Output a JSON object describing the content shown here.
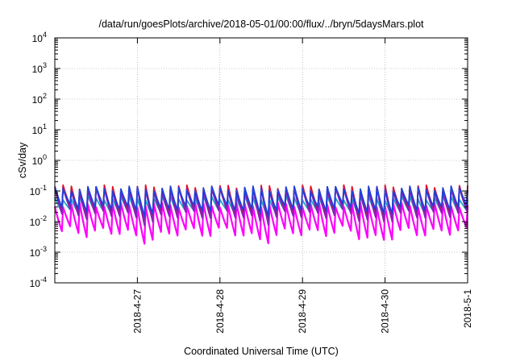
{
  "chart_data": {
    "type": "line",
    "title": "/data/run/goesPlots/archive/2018-05-01/00:00/flux/../bryn/5daysMars.plot",
    "xlabel": "Coordinated Universal Time (UTC)",
    "ylabel": "cSv/day",
    "y_scale": "log",
    "ylim": [
      0.0001,
      10000
    ],
    "y_ticks": [
      {
        "value": 0.0001,
        "base": "10",
        "exp": "-4"
      },
      {
        "value": 0.001,
        "base": "10",
        "exp": "-3"
      },
      {
        "value": 0.01,
        "base": "10",
        "exp": "-2"
      },
      {
        "value": 0.1,
        "base": "10",
        "exp": "-1"
      },
      {
        "value": 1,
        "base": "10",
        "exp": "0"
      },
      {
        "value": 10,
        "base": "10",
        "exp": "1"
      },
      {
        "value": 100,
        "base": "10",
        "exp": "2"
      },
      {
        "value": 1000,
        "base": "10",
        "exp": "3"
      },
      {
        "value": 10000,
        "base": "10",
        "exp": "4"
      }
    ],
    "xlim": [
      "2018-04-26 00:00",
      "2018-05-01 00:00"
    ],
    "x_ticks": [
      "2018-4-27",
      "2018-4-28",
      "2018-4-29",
      "2018-4-30",
      "2018-5-1"
    ],
    "grid": true,
    "cycles_per_day": 10,
    "series": [
      {
        "color": "#e0102a",
        "values_peak": 0.13,
        "values_trough": 0.02
      },
      {
        "color": "#8a1fb5",
        "values_peak": 0.11,
        "values_trough": 0.015
      },
      {
        "color": "#1f3fd9",
        "values_peak": 0.12,
        "values_trough": 0.025
      },
      {
        "color": "#20a6c8",
        "values_peak": 0.06,
        "values_trough": 0.018
      },
      {
        "color": "#ff00ff",
        "values_peak": 0.035,
        "values_trough": 0.004
      }
    ]
  }
}
